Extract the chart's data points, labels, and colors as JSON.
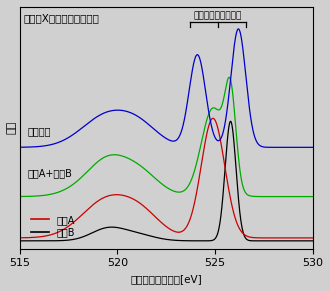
{
  "title": "水の軟X線発光スペクトル",
  "xlabel": "発光エネルギー－[eV]",
  "ylabel": "強度",
  "xmin": 515,
  "xmax": 530,
  "annotation": "孤立電子対のピーク",
  "legend_compA": "成分A",
  "legend_compB": "成分B",
  "label_exp": "実験結果",
  "label_sum": "成分A+成分B",
  "colors": {
    "blue": "#0000cc",
    "green": "#00aa00",
    "red": "#cc0000",
    "black": "#000000"
  },
  "background": "#d0d0d0"
}
